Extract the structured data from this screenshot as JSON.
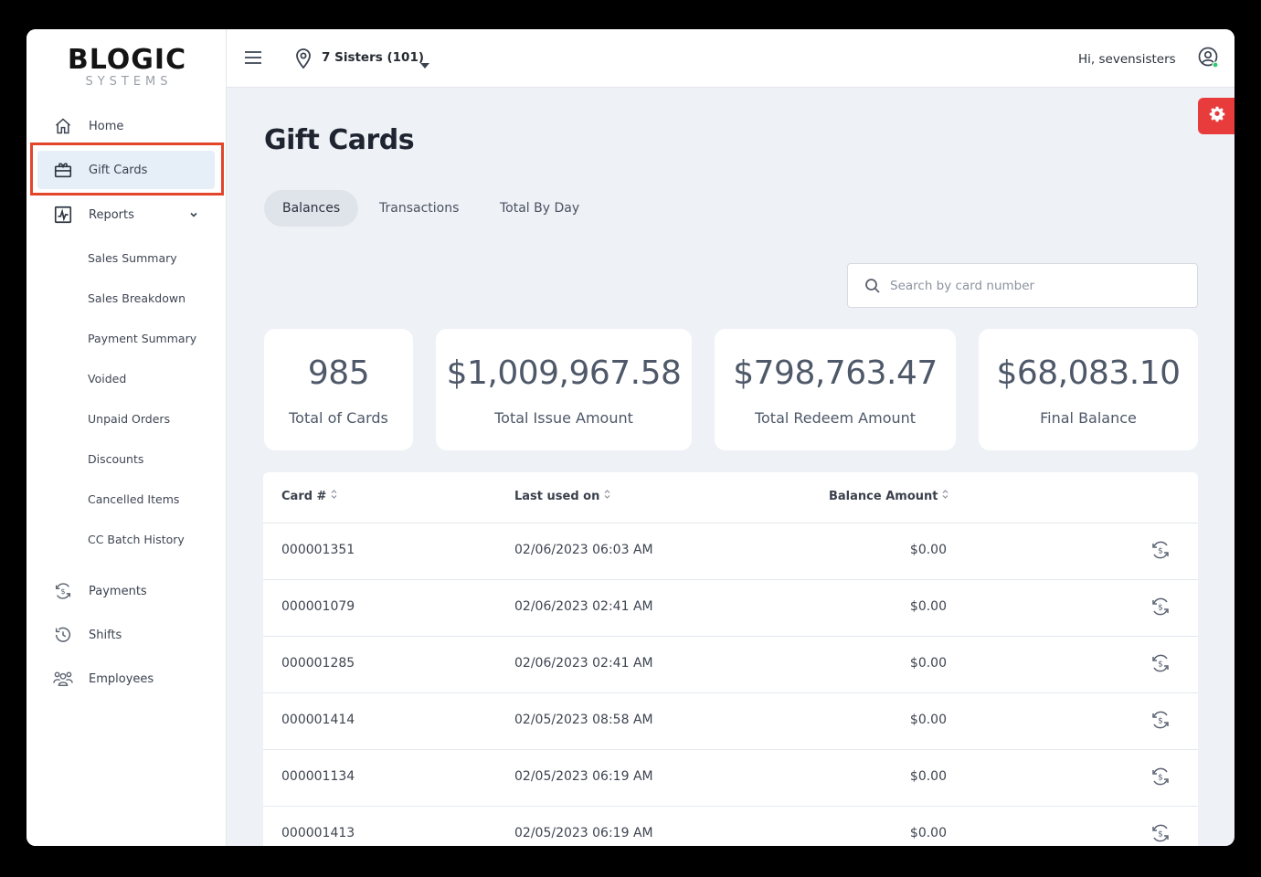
{
  "logo": {
    "main": "BLOGIC",
    "sub": "SYSTEMS"
  },
  "sidebar": {
    "items": [
      {
        "label": "Home",
        "icon": "home-icon"
      },
      {
        "label": "Gift Cards",
        "icon": "gift-card-icon",
        "active": true
      },
      {
        "label": "Reports",
        "icon": "reports-icon"
      },
      {
        "label": "Payments",
        "icon": "payments-icon"
      },
      {
        "label": "Shifts",
        "icon": "shifts-icon"
      },
      {
        "label": "Employees",
        "icon": "employees-icon"
      }
    ],
    "report_subitems": [
      "Sales Summary",
      "Sales Breakdown",
      "Payment Summary",
      "Voided",
      "Unpaid Orders",
      "Discounts",
      "Cancelled Items",
      "CC Batch History"
    ]
  },
  "topbar": {
    "location": "7 Sisters (101)",
    "greeting": "Hi, sevensisters"
  },
  "page": {
    "title": "Gift Cards",
    "tabs": [
      {
        "label": "Balances",
        "active": true
      },
      {
        "label": "Transactions",
        "active": false
      },
      {
        "label": "Total By Day",
        "active": false
      }
    ],
    "search_placeholder": "Search by card number"
  },
  "stats": [
    {
      "value": "985",
      "label": "Total of Cards"
    },
    {
      "value": "$1,009,967.58",
      "label": "Total Issue Amount"
    },
    {
      "value": "$798,763.47",
      "label": "Total Redeem Amount"
    },
    {
      "value": "$68,083.10",
      "label": "Final Balance"
    }
  ],
  "table": {
    "headers": [
      "Card #",
      "Last used on",
      "Balance Amount"
    ],
    "rows": [
      {
        "card": "000001351",
        "last_used": "02/06/2023 06:03 AM",
        "balance": "$0.00"
      },
      {
        "card": "000001079",
        "last_used": "02/06/2023 02:41 AM",
        "balance": "$0.00"
      },
      {
        "card": "000001285",
        "last_used": "02/06/2023 02:41 AM",
        "balance": "$0.00"
      },
      {
        "card": "000001414",
        "last_used": "02/05/2023 08:58 AM",
        "balance": "$0.00"
      },
      {
        "card": "000001134",
        "last_used": "02/05/2023 06:19 AM",
        "balance": "$0.00"
      },
      {
        "card": "000001413",
        "last_used": "02/05/2023 06:19 AM",
        "balance": "$0.00"
      }
    ]
  },
  "colors": {
    "accent_red": "#e83c3c",
    "highlight_outline": "#e2452a",
    "active_nav_bg": "#e6eef8",
    "online_dot": "#2ecc71"
  }
}
